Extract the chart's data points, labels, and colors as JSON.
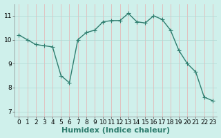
{
  "x": [
    0,
    1,
    2,
    3,
    4,
    5,
    6,
    7,
    8,
    9,
    10,
    11,
    12,
    13,
    14,
    15,
    16,
    17,
    18,
    19,
    20,
    21,
    22,
    23
  ],
  "y": [
    10.2,
    10.0,
    9.8,
    9.75,
    9.7,
    8.5,
    8.2,
    10.0,
    10.3,
    10.4,
    10.75,
    10.8,
    10.8,
    11.1,
    10.75,
    10.7,
    11.0,
    10.85,
    10.4,
    9.55,
    9.0,
    8.65,
    7.6,
    7.45
  ],
  "line_color": "#2e7d6e",
  "marker": "+",
  "markersize": 4,
  "linewidth": 1.0,
  "background_color": "#cff0eb",
  "grid_color_v": "#e8b0b0",
  "grid_color_h": "#b0d8d4",
  "xlabel": "Humidex (Indice chaleur)",
  "xlabel_fontsize": 8,
  "ylabel_ticks": [
    7,
    8,
    9,
    10,
    11
  ],
  "ylim": [
    6.8,
    11.5
  ],
  "xlim": [
    -0.5,
    23.5
  ],
  "xticks": [
    0,
    1,
    2,
    3,
    4,
    5,
    6,
    7,
    8,
    9,
    10,
    11,
    12,
    13,
    14,
    15,
    16,
    17,
    18,
    19,
    20,
    21,
    22,
    23
  ],
  "tick_fontsize": 6.5
}
